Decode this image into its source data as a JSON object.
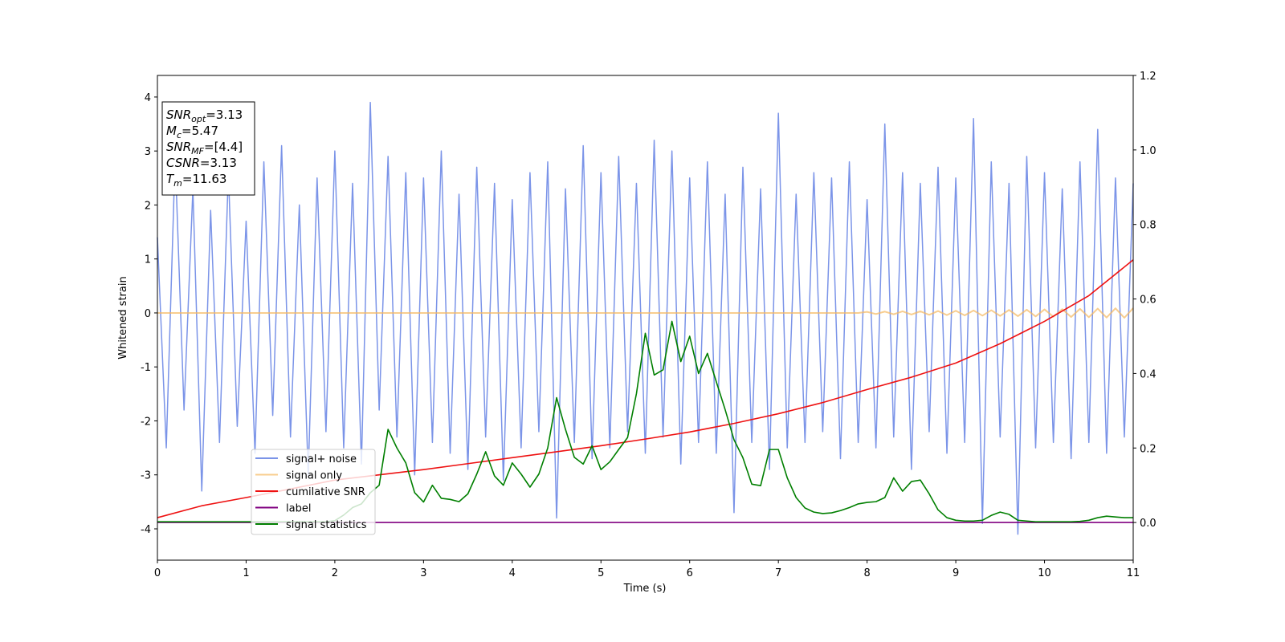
{
  "chart_data": {
    "type": "line",
    "xlabel": "Time (s)",
    "ylabel": "Whitened strain",
    "xlim": [
      0,
      11
    ],
    "ylim": [
      -4.58,
      4.4
    ],
    "y2lim": [
      -0.101,
      1.2
    ],
    "xticks": [
      0,
      1,
      2,
      3,
      4,
      5,
      6,
      7,
      8,
      9,
      10,
      11
    ],
    "yticks": [
      -4,
      -3,
      -2,
      -1,
      0,
      1,
      2,
      3,
      4
    ],
    "y2ticks": [
      {
        "value": 0,
        "label": "0.0"
      },
      {
        "value": 0.2,
        "label": "0.2"
      },
      {
        "value": 0.4,
        "label": "0.4"
      },
      {
        "value": 0.6,
        "label": "0.6"
      },
      {
        "value": 0.8,
        "label": "0.8"
      },
      {
        "value": 1.0,
        "label": "1.0"
      },
      {
        "value": 1.2,
        "label": "1.2"
      }
    ],
    "grid": false,
    "legend": "lower left",
    "x": [
      0.0,
      0.1,
      0.2,
      0.3,
      0.4,
      0.5,
      0.6,
      0.7,
      0.8,
      0.9,
      1.0,
      1.1,
      1.2,
      1.3,
      1.4,
      1.5,
      1.6,
      1.7,
      1.8,
      1.9,
      2.0,
      2.1,
      2.2,
      2.3,
      2.4,
      2.5,
      2.6,
      2.7,
      2.8,
      2.9,
      3.0,
      3.1,
      3.2,
      3.3,
      3.4,
      3.5,
      3.6,
      3.7,
      3.8,
      3.9,
      4.0,
      4.1,
      4.2,
      4.3,
      4.4,
      4.5,
      4.6,
      4.7,
      4.8,
      4.9,
      5.0,
      5.1,
      5.2,
      5.3,
      5.4,
      5.5,
      5.6,
      5.7,
      5.8,
      5.9,
      6.0,
      6.1,
      6.2,
      6.3,
      6.4,
      6.5,
      6.6,
      6.7,
      6.8,
      6.9,
      7.0,
      7.1,
      7.2,
      7.3,
      7.4,
      7.5,
      7.6,
      7.7,
      7.8,
      7.9,
      8.0,
      8.1,
      8.2,
      8.3,
      8.4,
      8.5,
      8.6,
      8.7,
      8.8,
      8.9,
      9.0,
      9.1,
      9.2,
      9.3,
      9.4,
      9.5,
      9.6,
      9.7,
      9.8,
      9.9,
      10.0,
      10.1,
      10.2,
      10.3,
      10.4,
      10.5,
      10.6,
      10.7,
      10.8,
      10.9,
      11.0
    ],
    "series": [
      {
        "name": "signal+ noise",
        "color": "#7b94e8",
        "axis": "y",
        "values": [
          1.4,
          -2.5,
          2.9,
          -1.8,
          2.3,
          -3.3,
          1.9,
          -2.4,
          2.6,
          -2.1,
          1.7,
          -2.6,
          2.8,
          -1.9,
          3.1,
          -2.3,
          2.0,
          -3.0,
          2.5,
          -2.2,
          3.0,
          -2.5,
          2.4,
          -2.8,
          3.9,
          -1.8,
          2.9,
          -2.3,
          2.6,
          -3.0,
          2.5,
          -2.4,
          3.0,
          -2.6,
          2.2,
          -2.9,
          2.7,
          -2.3,
          2.4,
          -3.1,
          2.1,
          -2.5,
          2.6,
          -2.2,
          2.8,
          -3.8,
          2.3,
          -2.4,
          3.1,
          -2.7,
          2.6,
          -2.5,
          2.9,
          -2.2,
          2.4,
          -2.6,
          3.2,
          -2.3,
          3.0,
          -2.8,
          2.5,
          -2.4,
          2.8,
          -2.6,
          2.2,
          -3.7,
          2.7,
          -2.4,
          2.3,
          -2.9,
          3.7,
          -2.5,
          2.2,
          -2.4,
          2.6,
          -2.2,
          2.5,
          -2.7,
          2.8,
          -2.4,
          2.1,
          -2.5,
          3.5,
          -2.3,
          2.6,
          -2.9,
          2.4,
          -2.2,
          2.7,
          -2.6,
          2.5,
          -2.4,
          3.6,
          -3.9,
          2.8,
          -2.3,
          2.4,
          -4.1,
          2.9,
          -2.5,
          2.6,
          -2.4,
          2.3,
          -2.7,
          2.8,
          -2.4,
          3.4,
          -2.6,
          2.5,
          -2.3,
          2.4
        ]
      },
      {
        "name": "signal only",
        "color": "#f5b860",
        "axis": "y",
        "values": [
          0,
          0,
          0,
          0,
          0,
          0,
          0,
          0,
          0,
          0,
          0,
          0,
          0,
          0,
          0,
          0,
          0,
          0,
          0,
          0,
          0,
          0,
          0,
          0,
          0,
          0,
          0,
          0,
          0,
          0,
          0,
          0,
          0,
          0,
          0,
          0,
          0,
          0,
          0,
          0,
          0,
          0,
          0,
          0,
          0,
          0,
          0,
          0,
          0,
          0,
          0,
          0,
          0,
          0,
          0,
          0,
          0,
          0,
          0,
          0,
          0,
          0,
          0,
          0,
          0,
          0,
          0,
          0,
          0,
          0,
          0,
          0,
          0,
          0,
          0,
          0,
          0,
          0,
          0,
          0,
          0.02,
          -0.02,
          0.025,
          -0.025,
          0.03,
          -0.03,
          0.03,
          -0.035,
          0.035,
          -0.04,
          0.04,
          -0.045,
          0.045,
          -0.05,
          0.05,
          -0.055,
          0.055,
          -0.06,
          0.06,
          -0.065,
          0.065,
          -0.07,
          0.07,
          -0.075,
          0.075,
          -0.08,
          0.08,
          -0.085,
          0.085,
          -0.09,
          0.09
        ]
      },
      {
        "name": "cumilative SNR",
        "color": "#ee1111",
        "axis": "y2",
        "x": [
          0,
          0.5,
          1,
          1.5,
          2,
          2.5,
          3,
          3.5,
          4,
          4.5,
          5,
          5.5,
          6,
          6.5,
          7,
          7.5,
          8,
          8.5,
          9,
          9.5,
          10,
          10.5,
          11
        ],
        "values": [
          0.013,
          0.045,
          0.067,
          0.09,
          0.114,
          0.128,
          0.142,
          0.158,
          0.174,
          0.19,
          0.206,
          0.224,
          0.243,
          0.266,
          0.292,
          0.322,
          0.357,
          0.39,
          0.428,
          0.48,
          0.54,
          0.609,
          0.705
        ]
      },
      {
        "name": "label",
        "color": "#800080",
        "axis": "y2",
        "x": [
          0,
          11
        ],
        "values": [
          0,
          0
        ]
      },
      {
        "name": "signal statistics",
        "color": "#007f00",
        "axis": "y2",
        "values": [
          0.002,
          0.002,
          0.002,
          0.002,
          0.002,
          0.002,
          0.002,
          0.002,
          0.002,
          0.002,
          0.002,
          0.002,
          0.002,
          0.002,
          0.002,
          0.002,
          0.002,
          0.002,
          0.002,
          0.002,
          0.005,
          0.02,
          0.04,
          0.05,
          0.08,
          0.1,
          0.25,
          0.2,
          0.16,
          0.08,
          0.055,
          0.1,
          0.065,
          0.062,
          0.056,
          0.077,
          0.13,
          0.19,
          0.125,
          0.1,
          0.16,
          0.13,
          0.095,
          0.13,
          0.2,
          0.335,
          0.25,
          0.175,
          0.157,
          0.206,
          0.142,
          0.163,
          0.196,
          0.228,
          0.346,
          0.508,
          0.396,
          0.41,
          0.54,
          0.432,
          0.5,
          0.4,
          0.454,
          0.378,
          0.303,
          0.222,
          0.174,
          0.103,
          0.099,
          0.196,
          0.196,
          0.12,
          0.067,
          0.039,
          0.028,
          0.024,
          0.026,
          0.032,
          0.04,
          0.05,
          0.054,
          0.056,
          0.067,
          0.12,
          0.084,
          0.11,
          0.114,
          0.077,
          0.034,
          0.013,
          0.006,
          0.004,
          0.004,
          0.006,
          0.019,
          0.028,
          0.022,
          0.006,
          0.004,
          0.002,
          0.002,
          0.002,
          0.002,
          0.002,
          0.003,
          0.006,
          0.013,
          0.017,
          0.015,
          0.013,
          0.013
        ]
      }
    ],
    "annotation_lines": [
      {
        "name": "SNR",
        "sub": "opt",
        "value": "=3.13"
      },
      {
        "name": "M",
        "sub": "c",
        "value": "=5.47"
      },
      {
        "name": "SNR",
        "sub": "MF",
        "value": "=[4.4]"
      },
      {
        "name": "CSNR",
        "value": "=3.13"
      },
      {
        "name": "T",
        "sub": "m",
        "value": "=11.63"
      }
    ]
  }
}
